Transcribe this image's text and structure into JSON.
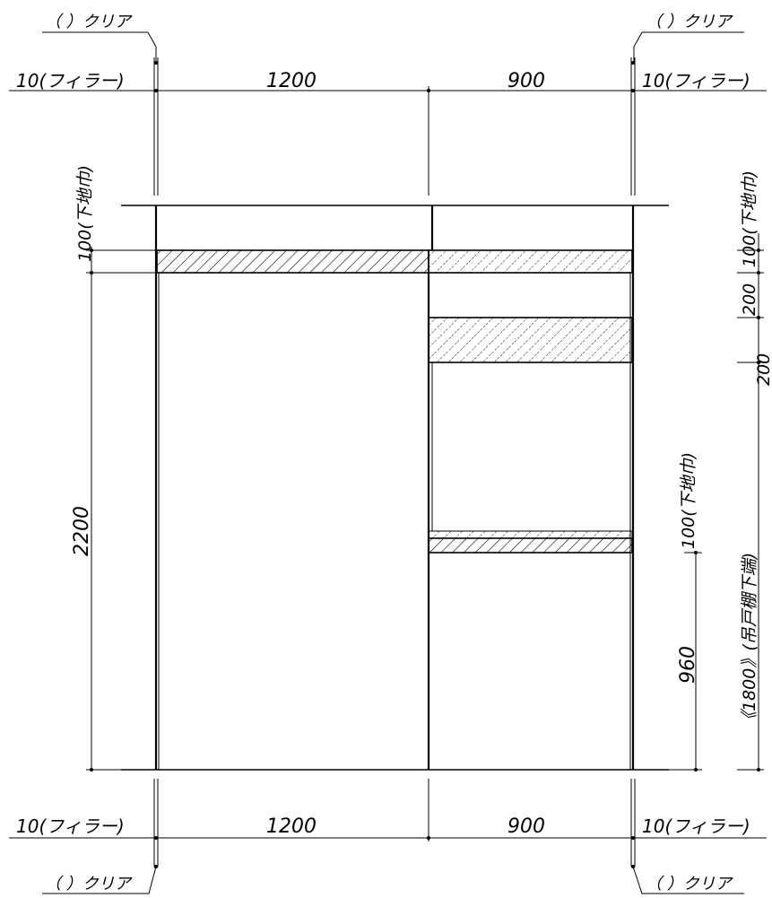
{
  "labels": {
    "clear": "（  ）クリア",
    "filler": "10(フィラー)",
    "width_left": "1200",
    "width_right": "900",
    "ground_100": "100(下地巾)",
    "ground_100_right": "100(下地巾)",
    "ground_100_mid": "100(下地巾)",
    "height_2200": "2200",
    "dim_200": "200",
    "dim_200b": "200",
    "height_960": "960",
    "height_1800": "《1800》(吊戸棚下端)"
  }
}
